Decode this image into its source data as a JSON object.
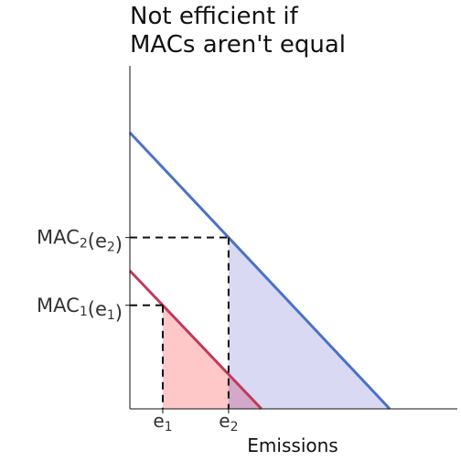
{
  "chart_data": {
    "type": "line",
    "title_lines": [
      "Not efficient if",
      "MACs aren't equal"
    ],
    "xlabel": "Emissions",
    "ylabel": "",
    "xlim": [
      0,
      1
    ],
    "ylim": [
      0,
      1
    ],
    "grid": false,
    "series": [
      {
        "color": "#4a72c4",
        "fill": "#d9d9f3",
        "x": [
          0,
          0.79
        ],
        "y": [
          1,
          0
        ]
      },
      {
        "color": "#c03a5a",
        "fill": "#fec8c8",
        "x": [
          0,
          0.4
        ],
        "y": [
          0.5,
          0
        ]
      }
    ],
    "points": {
      "e1": 0.1,
      "e2": 0.3
    },
    "x_tick_labels": [
      {
        "main": "e",
        "sub": "1"
      },
      {
        "main": "e",
        "sub": "2"
      }
    ],
    "y_tick_labels": [
      {
        "parts": [
          {
            "t": "MAC",
            "sub": false
          },
          {
            "t": "2",
            "sub": true
          },
          {
            "t": "(e",
            "sub": false
          },
          {
            "t": "2",
            "sub": true
          },
          {
            "t": ")",
            "sub": false
          }
        ]
      },
      {
        "parts": [
          {
            "t": "MAC",
            "sub": false
          },
          {
            "t": "1",
            "sub": true
          },
          {
            "t": "(e",
            "sub": false
          },
          {
            "t": "1",
            "sub": true
          },
          {
            "t": ")",
            "sub": false
          }
        ]
      }
    ],
    "colors": {
      "axis": "#111111",
      "dashed": "#111111",
      "overlap": "#d4a8c8"
    }
  }
}
